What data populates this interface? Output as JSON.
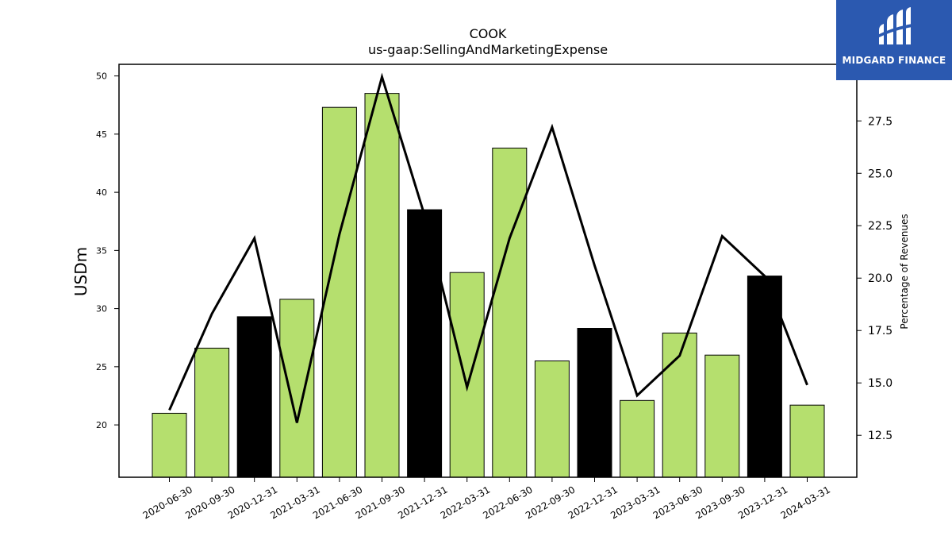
{
  "chart_data": {
    "type": "bar",
    "title": "COOK",
    "subtitle": "us-gaap:SellingAndMarketingExpense",
    "ylabel": "USDm",
    "y2label": "Percentage of Revenues",
    "categories": [
      "2020-06-30",
      "2020-09-30",
      "2020-12-31",
      "2021-03-31",
      "2021-06-30",
      "2021-09-30",
      "2021-12-31",
      "2022-03-31",
      "2022-06-30",
      "2022-09-30",
      "2022-12-31",
      "2023-03-31",
      "2023-06-30",
      "2023-09-30",
      "2023-12-31",
      "2024-03-31"
    ],
    "series": [
      {
        "type": "bar",
        "values": [
          21.0,
          26.6,
          29.3,
          30.8,
          47.3,
          48.5,
          38.5,
          33.1,
          43.8,
          25.5,
          28.3,
          22.1,
          27.9,
          26.0,
          32.8,
          21.7
        ]
      },
      {
        "type": "line",
        "axis": "right",
        "values": [
          13.7,
          18.3,
          21.9,
          13.1,
          22.1,
          29.6,
          23.0,
          14.8,
          21.9,
          27.2,
          20.6,
          14.4,
          16.3,
          22.0,
          20.1,
          14.9
        ]
      }
    ],
    "bar_colors": [
      "#b5df6e",
      "#b5df6e",
      "#000000",
      "#b5df6e",
      "#b5df6e",
      "#b5df6e",
      "#000000",
      "#b5df6e",
      "#b5df6e",
      "#b5df6e",
      "#000000",
      "#b5df6e",
      "#b5df6e",
      "#b5df6e",
      "#000000",
      "#b5df6e"
    ],
    "ylim": [
      15.5,
      51
    ],
    "y2lim": [
      10.5,
      30.2
    ],
    "yticks": [
      20,
      25,
      30,
      35,
      40,
      45,
      50
    ],
    "y2ticks": [
      12.5,
      15.0,
      17.5,
      20.0,
      22.5,
      25.0,
      27.5
    ],
    "grid": false,
    "legend": "none"
  },
  "logo": {
    "text": "MIDGARD FINANCE",
    "color": "#2b59b0"
  }
}
